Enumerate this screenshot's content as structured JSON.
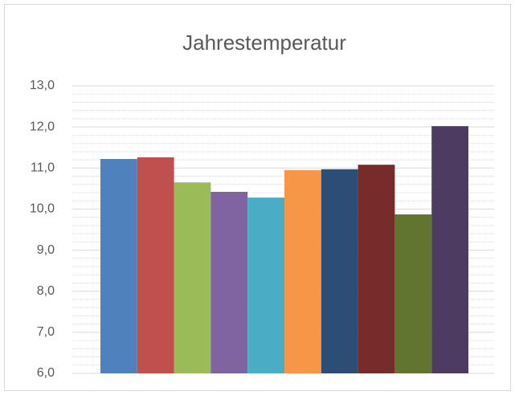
{
  "chart_data": {
    "type": "bar",
    "title": "Jahrestemperatur",
    "categories": [
      null,
      null,
      null,
      null,
      null,
      null,
      null,
      null,
      null,
      null
    ],
    "values": [
      11.22,
      11.26,
      10.65,
      10.42,
      10.28,
      10.95,
      10.97,
      11.08,
      9.87,
      12.02
    ],
    "colors": [
      "#4f81bd",
      "#c0504d",
      "#9bbb59",
      "#8064a2",
      "#4bacc6",
      "#f79646",
      "#2c4d75",
      "#772c2a",
      "#5f7530",
      "#4d3b62"
    ],
    "ylim": [
      6,
      13
    ],
    "yticks": [
      {
        "value": 6,
        "label": "6,0"
      },
      {
        "value": 7,
        "label": "7,0"
      },
      {
        "value": 8,
        "label": "8,0"
      },
      {
        "value": 9,
        "label": "9,0"
      },
      {
        "value": 10,
        "label": "10,0"
      },
      {
        "value": 11,
        "label": "11,0"
      },
      {
        "value": 12,
        "label": "12,0"
      },
      {
        "value": 13,
        "label": "13,0"
      }
    ],
    "grid": true,
    "minor_grid": true
  }
}
